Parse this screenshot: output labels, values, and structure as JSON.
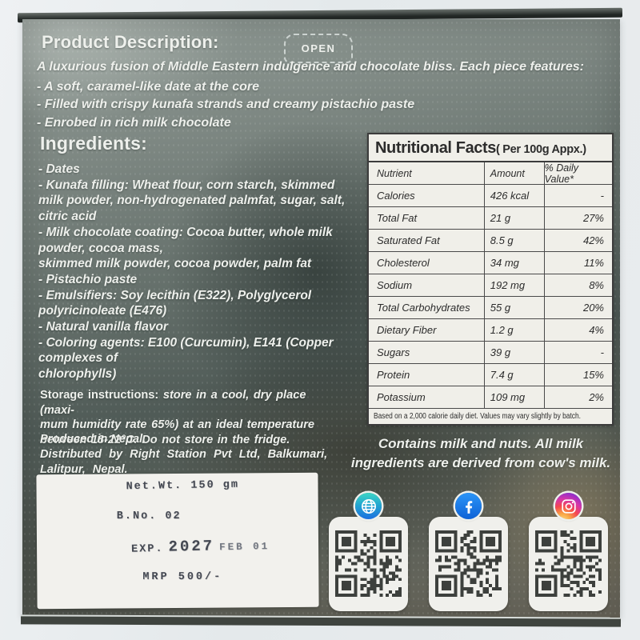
{
  "panel": {
    "open_label": "OPEN",
    "product_description": {
      "heading": "Product Description:",
      "intro": "A luxurious fusion of Middle Eastern indulgence and chocolate bliss. Each piece features:",
      "bullets": "- A soft, caramel-like date at the core\n- Filled with crispy kunafa strands and creamy pistachio paste\n- Enrobed in rich milk chocolate"
    },
    "ingredients": {
      "heading": "Ingredients:",
      "items": "- Dates\n- Kunafa filling: Wheat flour, corn starch, skimmed\nmilk powder, non-hydrogenated palmfat, sugar, salt,\ncitric acid\n- Milk chocolate coating: Cocoa butter, whole milk\npowder, cocoa mass,\nskimmed milk powder, cocoa powder, palm fat\n- Pistachio paste\n- Emulsifiers: Soy lecithin (E322), Polyglycerol\npolyricinoleate (E476)\n- Natural vanilla flavor\n- Coloring agents: E100 (Curcumin), E141 (Copper\ncomplexes of\nchlorophylls)"
    },
    "storage": {
      "label": "Storage instructions:",
      "text": "store in a cool, dry place (maxi-\nmum humidity rate 65%) at an ideal temperature\nbetween 18-22°C. Do not store in the fridge."
    },
    "produced": "Produced in Nepal.",
    "distributed": "Distributed by Right Station Pvt Ltd, Balkumari,\nLalitpur, Nepal.",
    "allergen": "Contains milk and nuts. All milk\ningredients are derived from cow's milk."
  },
  "nutrition": {
    "title_main": "Nutritional Facts",
    "title_suffix": "( Per 100g Appx.)",
    "columns": [
      "Nutrient",
      "Amount",
      "% Daily Value*"
    ],
    "rows": [
      {
        "nutrient": "Calories",
        "amount": "426 kcal",
        "dv": "-"
      },
      {
        "nutrient": "Total Fat",
        "amount": "21 g",
        "dv": "27%"
      },
      {
        "nutrient": "Saturated Fat",
        "amount": "8.5 g",
        "dv": "42%"
      },
      {
        "nutrient": "Cholesterol",
        "amount": "34 mg",
        "dv": "11%"
      },
      {
        "nutrient": "Sodium",
        "amount": "192 mg",
        "dv": "8%"
      },
      {
        "nutrient": "Total Carbohydrates",
        "amount": "55 g",
        "dv": "20%"
      },
      {
        "nutrient": "Dietary Fiber",
        "amount": "1.2 g",
        "dv": "4%"
      },
      {
        "nutrient": "Sugars",
        "amount": "39 g",
        "dv": "-"
      },
      {
        "nutrient": "Protein",
        "amount": "7.4 g",
        "dv": "15%"
      },
      {
        "nutrient": "Potassium",
        "amount": "109 mg",
        "dv": "2%"
      }
    ],
    "footnote": "Based on a 2,000 calorie daily diet. Values may vary slightly by batch."
  },
  "label_stamps": {
    "net_weight": "Net.Wt. 150 gm",
    "batch_no": "B.No. 02",
    "exp_label": "EXP.",
    "exp_year": "2027",
    "exp_date": "FEB 01",
    "mrp": "MRP 500/-"
  },
  "social_icons": [
    {
      "icon": "globe-icon",
      "label": "website"
    },
    {
      "icon": "facebook-icon",
      "label": "facebook"
    },
    {
      "icon": "instagram-icon",
      "label": "instagram"
    }
  ],
  "colors": {
    "facebook_blue": "#1877f2",
    "web_badge_teal": "#2fd0c4",
    "web_badge_blue": "#1b6fe0",
    "instagram_pink": "#f5484d",
    "instagram_purple": "#9b30c7",
    "instagram_yellow": "#fdd076",
    "panel_text": "#eef0ec",
    "table_bg": "#f0efe9",
    "table_ink": "#2e2e2e",
    "stamp_ink": "#262b37"
  }
}
